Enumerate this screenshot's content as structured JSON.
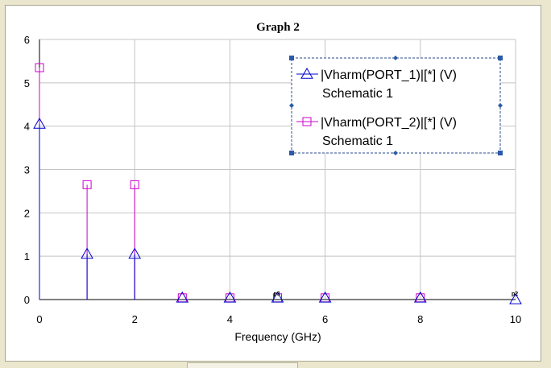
{
  "chart_data": {
    "type": "stem",
    "title": "Graph 2",
    "xlabel": "Frequency (GHz)",
    "ylabel": "",
    "xlim": [
      0,
      10
    ],
    "ylim": [
      0,
      6
    ],
    "x_ticks": [
      0,
      2,
      4,
      6,
      8,
      10
    ],
    "y_ticks": [
      0,
      1,
      2,
      3,
      4,
      5,
      6
    ],
    "grid": true,
    "legend_position": "top-right",
    "series": [
      {
        "name": "|Vharm(PORT_1)|[*] (V)",
        "subname": "Schematic 1",
        "color": "#0000cc",
        "marker": "triangle",
        "x": [
          0,
          1,
          2,
          3,
          4,
          5,
          6,
          8,
          10
        ],
        "values": [
          4.05,
          1.05,
          1.05,
          0.04,
          0.04,
          0.04,
          0.04,
          0.04,
          0.0
        ]
      },
      {
        "name": "|Vharm(PORT_2)|[*] (V)",
        "subname": "Schematic 1",
        "color": "#cc00cc",
        "marker": "square",
        "x": [
          0,
          1,
          2,
          3,
          4,
          5,
          6,
          8
        ],
        "values": [
          5.35,
          2.65,
          2.65,
          0.04,
          0.04,
          0.04,
          0.04,
          0.04
        ]
      }
    ],
    "annotations": [
      "p3",
      "p2"
    ]
  }
}
